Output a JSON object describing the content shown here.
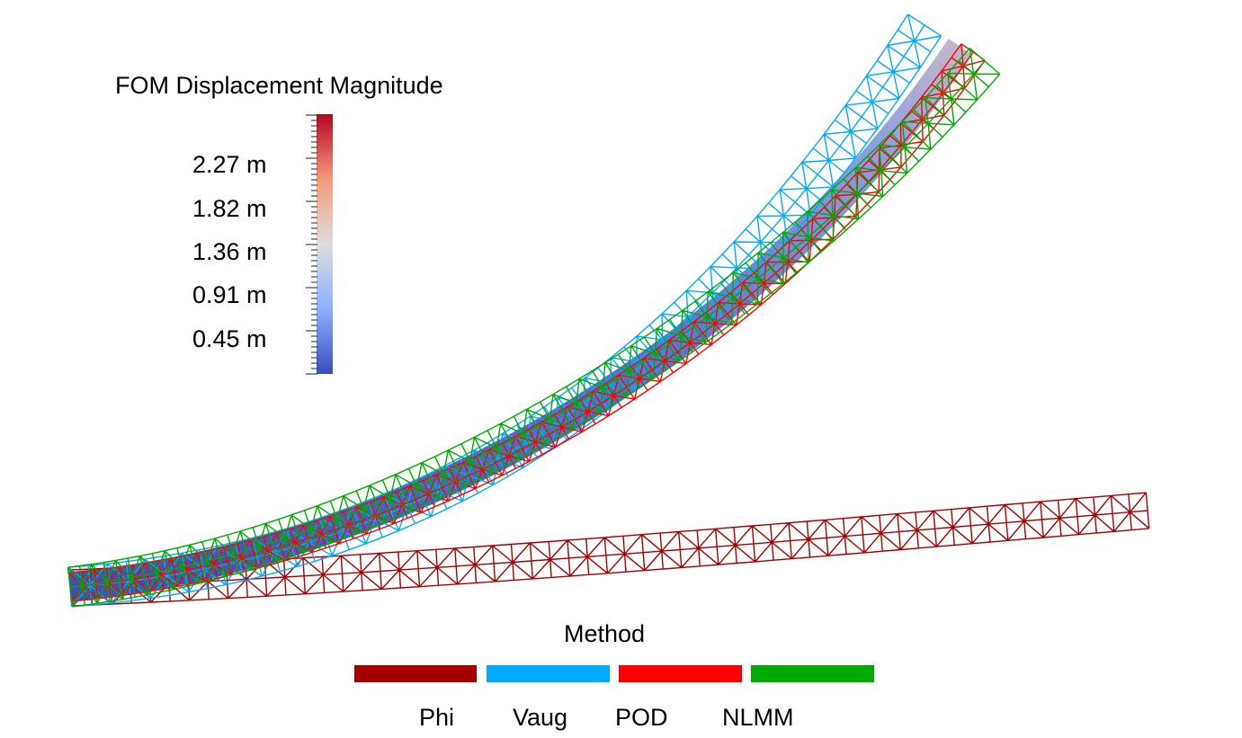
{
  "colorbar": {
    "title": "FOM Displacement Magnitude",
    "labels": [
      "2.27  m",
      "1.82  m",
      "1.36  m",
      "0.91  m",
      "0.45  m"
    ],
    "colormap": [
      "#3b4cc0",
      "#8db0fe",
      "#dddddd",
      "#f49a7b",
      "#b40426"
    ]
  },
  "legend": {
    "title": "Method",
    "items": [
      {
        "label": "Phi",
        "color": "#a50000"
      },
      {
        "label": "Vaug",
        "color": "#00aaff"
      },
      {
        "label": "POD",
        "color": "#ff0000"
      },
      {
        "label": "NLMM",
        "color": "#00aa00"
      }
    ]
  },
  "mesh": {
    "fom_fill": "#5a6fd0",
    "fom_tip_fill": "#b0a8b8"
  }
}
